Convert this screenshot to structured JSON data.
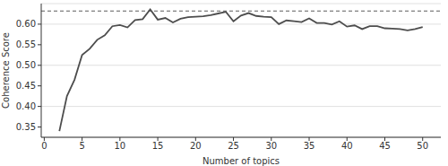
{
  "chart_data": {
    "type": "line",
    "x_label": "Number of topics",
    "y_label": "Coherence Score",
    "x": [
      2,
      3,
      4,
      5,
      6,
      7,
      8,
      9,
      10,
      11,
      12,
      13,
      14,
      15,
      16,
      17,
      18,
      19,
      20,
      21,
      22,
      23,
      24,
      25,
      26,
      27,
      28,
      29,
      30,
      31,
      32,
      33,
      34,
      35,
      36,
      37,
      38,
      39,
      40,
      41,
      42,
      43,
      44,
      45,
      46,
      47,
      48,
      49,
      50
    ],
    "values": [
      0.34,
      0.425,
      0.465,
      0.525,
      0.54,
      0.562,
      0.573,
      0.595,
      0.598,
      0.592,
      0.61,
      0.612,
      0.636,
      0.611,
      0.615,
      0.604,
      0.613,
      0.617,
      0.618,
      0.619,
      0.622,
      0.626,
      0.63,
      0.607,
      0.621,
      0.627,
      0.62,
      0.618,
      0.617,
      0.6,
      0.609,
      0.607,
      0.605,
      0.614,
      0.603,
      0.603,
      0.599,
      0.607,
      0.594,
      0.597,
      0.588,
      0.595,
      0.595,
      0.59,
      0.589,
      0.588,
      0.585,
      0.588,
      0.593
    ],
    "color": "#4d4d4d",
    "xlim": [
      -0.4,
      52.4
    ],
    "xticks": [
      0,
      5,
      10,
      15,
      20,
      25,
      30,
      35,
      40,
      45,
      50
    ],
    "ylim": [
      0.325,
      0.65
    ],
    "yticks": [
      0.35,
      {
        "value": 0.4,
        "label": "0.40"
      },
      0.45,
      {
        "value": 0.5,
        "label": "0.50"
      },
      0.55,
      {
        "value": 0.6,
        "label": "0.60"
      }
    ],
    "grid": "y",
    "reference_line": {
      "y": 0.632,
      "line_style": "dashed",
      "color": "#333333"
    }
  }
}
